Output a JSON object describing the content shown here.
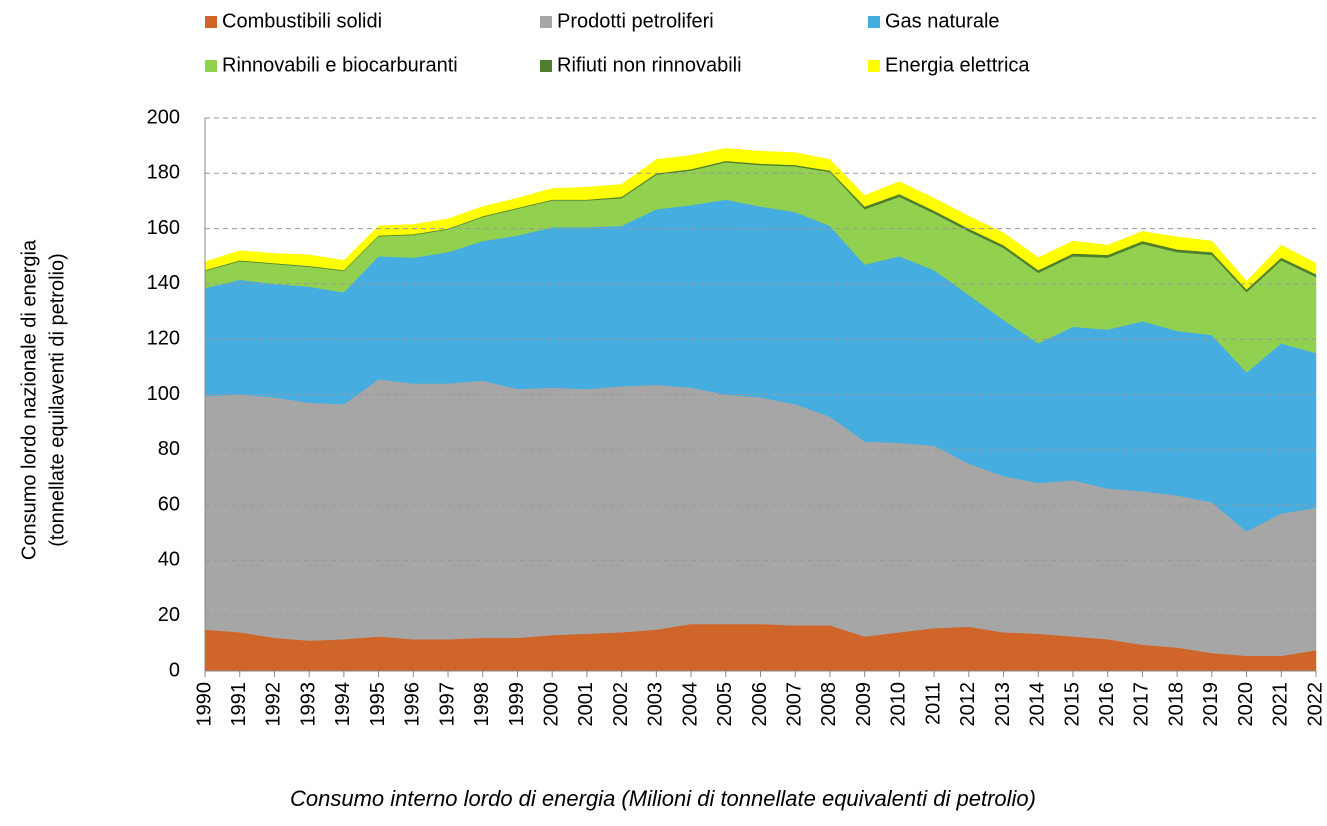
{
  "chart_data": {
    "type": "stacked_area",
    "caption": "Consumo interno lordo di energia (Milioni di tonnellate equivalenti di petrolio)",
    "ylabel": [
      "Consumo lordo nazionale di energia",
      "(tonnellate equilaventi di petrolio)"
    ],
    "categories": [
      "1990",
      "1991",
      "1992",
      "1993",
      "1994",
      "1995",
      "1996",
      "1997",
      "1998",
      "1999",
      "2000",
      "2001",
      "2002",
      "2003",
      "2004",
      "2005",
      "2006",
      "2007",
      "2008",
      "2009",
      "2010",
      "2011",
      "2012",
      "2013",
      "2014",
      "2015",
      "2016",
      "2017",
      "2018",
      "2019",
      "2020",
      "2021",
      "2022"
    ],
    "ylim": [
      0,
      200
    ],
    "yticks": [
      0,
      20,
      40,
      60,
      80,
      100,
      120,
      140,
      160,
      180,
      200
    ],
    "grid": true,
    "series": [
      {
        "name": "Combustibili solidi",
        "color": "#d0652a",
        "values": [
          15,
          14,
          12,
          11,
          11.5,
          12.5,
          11.5,
          11.5,
          12,
          12,
          13,
          13.5,
          14,
          15,
          17,
          17,
          17,
          16.5,
          16.5,
          12.5,
          14,
          15.5,
          16,
          14,
          13.5,
          12.5,
          11.5,
          9.5,
          8.5,
          6.5,
          5.5,
          5.5,
          7.5
        ]
      },
      {
        "name": "Prodotti petroliferi",
        "color": "#a6a6a6",
        "values": [
          84.5,
          86,
          87,
          86,
          85,
          93,
          92.5,
          92.5,
          93,
          90,
          89.5,
          88.5,
          89,
          88.5,
          85.5,
          83,
          82,
          80,
          75.5,
          70.5,
          68.5,
          66,
          59,
          56.5,
          54.5,
          56.5,
          54.5,
          55.5,
          55,
          54.5,
          45,
          51.5,
          51.5
        ]
      },
      {
        "name": "Gas naturale",
        "color": "#46ade0",
        "values": [
          39,
          41.5,
          41,
          42,
          40.5,
          44.5,
          45.5,
          47.5,
          50.5,
          55.5,
          58,
          58.5,
          58,
          63.5,
          66,
          70.5,
          69,
          69.5,
          69,
          64,
          67.5,
          63.5,
          61,
          56.5,
          50.5,
          55.5,
          57.5,
          61.5,
          59.5,
          60.5,
          57.5,
          61.5,
          56
        ]
      },
      {
        "name": "Rinnovabili e biocarburanti",
        "color": "#92d050",
        "values": [
          6.2,
          6.7,
          7.2,
          7.2,
          7.7,
          7.2,
          8.2,
          8.2,
          8.7,
          9.7,
          9.7,
          9.7,
          10,
          12.5,
          12.5,
          13.5,
          15,
          16.5,
          19.5,
          20,
          21.5,
          20.5,
          23,
          26,
          25.5,
          25.5,
          26,
          28,
          28.5,
          29,
          29,
          30,
          27.5
        ]
      },
      {
        "name": "Rifiuti non rinnovabili",
        "color": "#4f7f2c",
        "values": [
          0.3,
          0.3,
          0.3,
          0.3,
          0.3,
          0.3,
          0.3,
          0.3,
          0.3,
          0.3,
          0.3,
          0.3,
          0.5,
          0.5,
          0.5,
          0.5,
          0.5,
          0.5,
          0.5,
          1,
          1,
          1,
          1,
          1,
          1,
          1,
          1,
          1,
          1,
          1,
          1,
          1,
          1
        ]
      },
      {
        "name": "Energia elettrica",
        "color": "#ffff00",
        "values": [
          3,
          3.5,
          3.5,
          4,
          3.5,
          3.5,
          3.5,
          3.5,
          3.5,
          3.5,
          4,
          4.5,
          4.5,
          5,
          5,
          4.5,
          4.5,
          4.5,
          4,
          4,
          4.5,
          4.5,
          4.5,
          4.5,
          4.5,
          4.5,
          3.5,
          3.5,
          4.5,
          4,
          3,
          4.5,
          4
        ]
      }
    ]
  }
}
